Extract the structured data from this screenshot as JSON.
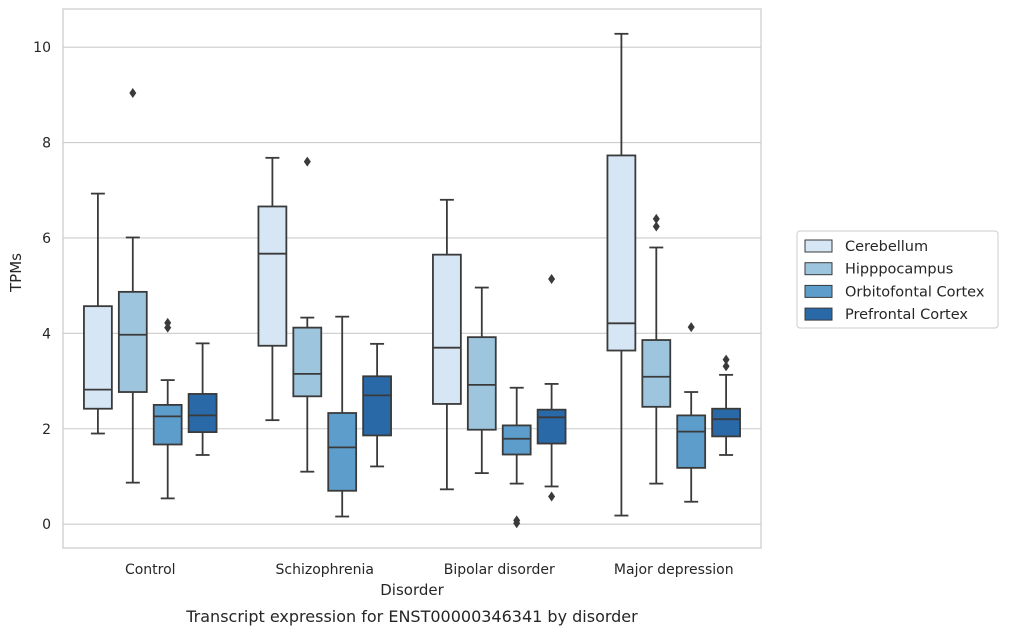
{
  "chart_data": {
    "type": "box",
    "caption": "Transcript expression for ENST00000346341 by disorder",
    "xlabel": "Disorder",
    "ylabel": "TPMs",
    "ylim": [
      -0.5,
      10.8
    ],
    "yticks": [
      0,
      2,
      4,
      6,
      8,
      10
    ],
    "grid": true,
    "legend_position": "right",
    "categories": [
      "Control",
      "Schizophrenia",
      "Bipolar disorder",
      "Major depression"
    ],
    "series": [
      {
        "name": "Cerebellum",
        "color": "#d7e6f4",
        "boxes": [
          {
            "whisker_low": 1.9,
            "q1": 2.42,
            "median": 2.82,
            "q3": 4.57,
            "whisker_high": 6.93,
            "outliers": []
          },
          {
            "whisker_low": 2.18,
            "q1": 3.74,
            "median": 5.67,
            "q3": 6.66,
            "whisker_high": 7.68,
            "outliers": []
          },
          {
            "whisker_low": 0.73,
            "q1": 2.52,
            "median": 3.7,
            "q3": 5.65,
            "whisker_high": 6.8,
            "outliers": []
          },
          {
            "whisker_low": 0.18,
            "q1": 3.64,
            "median": 4.21,
            "q3": 7.73,
            "whisker_high": 10.28,
            "outliers": []
          }
        ]
      },
      {
        "name": "Hipppocampus",
        "color": "#9dc5de",
        "boxes": [
          {
            "whisker_low": 0.87,
            "q1": 2.77,
            "median": 3.97,
            "q3": 4.87,
            "whisker_high": 6.01,
            "outliers": [
              9.04
            ]
          },
          {
            "whisker_low": 1.1,
            "q1": 2.68,
            "median": 3.15,
            "q3": 4.12,
            "whisker_high": 4.33,
            "outliers": [
              7.6
            ]
          },
          {
            "whisker_low": 1.07,
            "q1": 1.98,
            "median": 2.92,
            "q3": 3.92,
            "whisker_high": 4.96,
            "outliers": []
          },
          {
            "whisker_low": 0.85,
            "q1": 2.46,
            "median": 3.09,
            "q3": 3.86,
            "whisker_high": 5.8,
            "outliers": [
              6.24,
              6.4
            ]
          }
        ]
      },
      {
        "name": "Orbitofontal Cortex",
        "color": "#5c9dcb",
        "boxes": [
          {
            "whisker_low": 0.54,
            "q1": 1.67,
            "median": 2.26,
            "q3": 2.5,
            "whisker_high": 3.02,
            "outliers": [
              4.12,
              4.22
            ]
          },
          {
            "whisker_low": 0.16,
            "q1": 0.7,
            "median": 1.61,
            "q3": 2.33,
            "whisker_high": 4.35,
            "outliers": []
          },
          {
            "whisker_low": 0.85,
            "q1": 1.46,
            "median": 1.79,
            "q3": 2.07,
            "whisker_high": 2.86,
            "outliers": [
              0.02,
              0.08
            ]
          },
          {
            "whisker_low": 0.47,
            "q1": 1.18,
            "median": 1.94,
            "q3": 2.28,
            "whisker_high": 2.77,
            "outliers": [
              4.13
            ]
          }
        ]
      },
      {
        "name": "Prefrontal Cortex",
        "color": "#2a69a8",
        "boxes": [
          {
            "whisker_low": 1.45,
            "q1": 1.93,
            "median": 2.28,
            "q3": 2.73,
            "whisker_high": 3.79,
            "outliers": []
          },
          {
            "whisker_low": 1.21,
            "q1": 1.86,
            "median": 2.7,
            "q3": 3.1,
            "whisker_high": 3.78,
            "outliers": []
          },
          {
            "whisker_low": 0.79,
            "q1": 1.69,
            "median": 2.24,
            "q3": 2.4,
            "whisker_high": 2.94,
            "outliers": [
              0.58,
              5.14
            ]
          },
          {
            "whisker_low": 1.45,
            "q1": 1.84,
            "median": 2.2,
            "q3": 2.42,
            "whisker_high": 3.13,
            "outliers": [
              3.31,
              3.45
            ]
          }
        ]
      }
    ]
  }
}
